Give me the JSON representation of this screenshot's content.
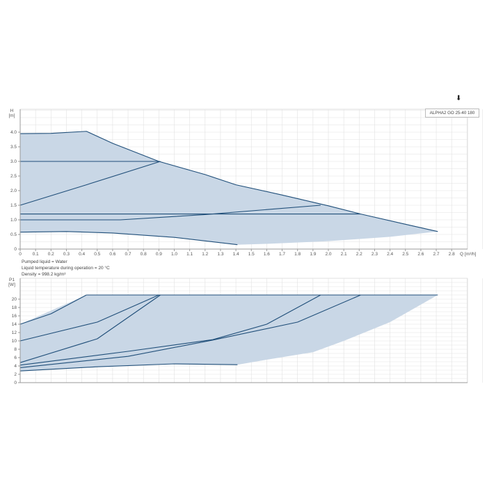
{
  "download_icon": "download-icon",
  "legend": {
    "label": "ALPHA2 GO 25-40 180"
  },
  "notes": [
    "Pumped liquid = Water",
    "Liquid temperature during operation = 20 °C",
    "Density = 998.2 kg/m³"
  ],
  "colors": {
    "line": "#1f4e79",
    "fill": "#c9d7e6",
    "grid": "#e2e2e2"
  },
  "chart_data": [
    {
      "type": "line",
      "ylabel": "H\n[m]",
      "ylabel_lines": [
        "H",
        "[m]"
      ],
      "xlabel": "Q [m³/h]",
      "xlim": [
        0,
        3.05
      ],
      "ylim": [
        0,
        4.5
      ],
      "xticks": [
        "0",
        "0.1",
        "0.2",
        "0.3",
        "0.4",
        "0.5",
        "0.6",
        "0.7",
        "0.8",
        "0.9",
        "1.0",
        "1.1",
        "1.2",
        "1.3",
        "1.4",
        "1.5",
        "1.6",
        "1.7",
        "1.8",
        "1.9",
        "2.0",
        "2.1",
        "2.2",
        "2.3",
        "2.4",
        "2.5",
        "2.6",
        "2.7",
        "2.8"
      ],
      "yticks": [
        "0",
        "0.5",
        "1.0",
        "1.5",
        "2.0",
        "2.5",
        "3.0",
        "3.5",
        "4.0"
      ],
      "grid": true,
      "area_upper": [
        [
          0,
          3.95
        ],
        [
          0.2,
          3.96
        ],
        [
          0.43,
          4.03
        ],
        [
          0.6,
          3.62
        ],
        [
          0.9,
          3.0
        ],
        [
          1.2,
          2.55
        ],
        [
          1.4,
          2.2
        ],
        [
          1.7,
          1.85
        ],
        [
          2.0,
          1.48
        ],
        [
          2.21,
          1.2
        ],
        [
          2.5,
          0.85
        ],
        [
          2.71,
          0.6
        ]
      ],
      "area_lower": [
        [
          2.71,
          0.6
        ],
        [
          2.4,
          0.42
        ],
        [
          2.0,
          0.27
        ],
        [
          1.6,
          0.18
        ],
        [
          1.41,
          0.15
        ],
        [
          1.0,
          0.4
        ],
        [
          0.6,
          0.55
        ],
        [
          0.3,
          0.6
        ],
        [
          0,
          0.58
        ]
      ],
      "series": [
        {
          "points": [
            [
              0,
              3.95
            ],
            [
              0.2,
              3.96
            ],
            [
              0.43,
              4.03
            ],
            [
              0.6,
              3.62
            ],
            [
              0.9,
              3.0
            ],
            [
              1.2,
              2.55
            ],
            [
              1.4,
              2.2
            ],
            [
              1.7,
              1.85
            ],
            [
              2.0,
              1.48
            ],
            [
              2.21,
              1.2
            ],
            [
              2.5,
              0.85
            ],
            [
              2.71,
              0.6
            ]
          ]
        },
        {
          "points": [
            [
              0,
              3.0
            ],
            [
              0.91,
              3.0
            ]
          ]
        },
        {
          "points": [
            [
              0,
              1.5
            ],
            [
              0.43,
              2.2
            ],
            [
              0.91,
              3.0
            ]
          ]
        },
        {
          "points": [
            [
              0,
              1.2
            ],
            [
              2.21,
              1.2
            ]
          ]
        },
        {
          "points": [
            [
              0,
              1.0
            ],
            [
              0.65,
              1.0
            ],
            [
              1.2,
              1.18
            ],
            [
              1.95,
              1.5
            ]
          ]
        },
        {
          "points": [
            [
              0,
              0.58
            ],
            [
              0.3,
              0.6
            ],
            [
              0.6,
              0.55
            ],
            [
              1.0,
              0.4
            ],
            [
              1.41,
              0.15
            ]
          ]
        }
      ]
    },
    {
      "type": "line",
      "ylabel_lines": [
        "P1",
        "[W]"
      ],
      "xlim": [
        0,
        3.05
      ],
      "ylim": [
        0,
        25
      ],
      "yticks": [
        "0",
        "2",
        "4",
        "6",
        "8",
        "10",
        "12",
        "14",
        "16",
        "18",
        "20"
      ],
      "grid": true,
      "area_upper": [
        [
          0,
          14
        ],
        [
          0.43,
          21
        ],
        [
          2.71,
          21
        ]
      ],
      "area_lower": [
        [
          2.71,
          21
        ],
        [
          2.4,
          14.5
        ],
        [
          2.1,
          10
        ],
        [
          1.9,
          7.3
        ],
        [
          1.6,
          5.5
        ],
        [
          1.41,
          4.3
        ],
        [
          1.0,
          4.5
        ],
        [
          0.5,
          3.8
        ],
        [
          0,
          2.8
        ]
      ],
      "series": [
        {
          "points": [
            [
              0.43,
              21
            ],
            [
              2.71,
              21
            ]
          ]
        },
        {
          "points": [
            [
              0,
              14
            ],
            [
              0.2,
              16.5
            ],
            [
              0.43,
              21
            ]
          ]
        },
        {
          "points": [
            [
              0,
              10
            ],
            [
              0.5,
              14.5
            ],
            [
              0.9,
              21
            ]
          ]
        },
        {
          "points": [
            [
              0,
              4.8
            ],
            [
              0.5,
              10.5
            ],
            [
              0.91,
              21
            ]
          ]
        },
        {
          "points": [
            [
              0,
              4.2
            ],
            [
              0.7,
              7.5
            ],
            [
              1.25,
              10.3
            ],
            [
              1.6,
              14
            ],
            [
              1.95,
              21
            ]
          ]
        },
        {
          "points": [
            [
              0,
              3.6
            ],
            [
              0.7,
              6.3
            ],
            [
              1.25,
              10.2
            ],
            [
              1.8,
              14.5
            ],
            [
              2.21,
              21
            ]
          ]
        },
        {
          "points": [
            [
              0,
              2.8
            ],
            [
              0.5,
              3.8
            ],
            [
              1.0,
              4.5
            ],
            [
              1.41,
              4.3
            ]
          ]
        }
      ]
    }
  ]
}
